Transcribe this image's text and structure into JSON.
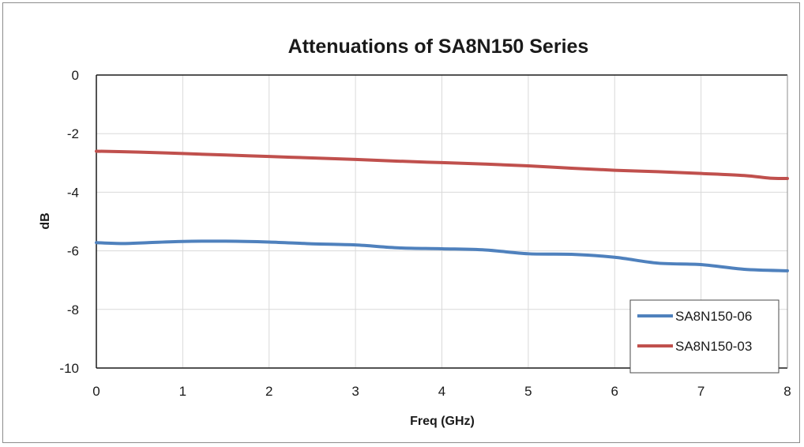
{
  "chart_data": {
    "type": "line",
    "title": "Attenuations of SA8N150 Series",
    "xlabel": "Freq (GHz)",
    "ylabel": "dB",
    "xlim": [
      0,
      8
    ],
    "ylim": [
      -10,
      0
    ],
    "x_ticks": [
      "0",
      "1",
      "2",
      "3",
      "4",
      "5",
      "6",
      "7",
      "8"
    ],
    "y_ticks": [
      "0",
      "-2",
      "-4",
      "-6",
      "-8",
      "-10"
    ],
    "grid": true,
    "legend_position": "bottom-right",
    "series": [
      {
        "name": "SA8N150-06",
        "color": "#4f81bd",
        "x": [
          0,
          0.3,
          0.6,
          1.0,
          1.5,
          2.0,
          2.5,
          3.0,
          3.5,
          4.0,
          4.5,
          5.0,
          5.5,
          6.0,
          6.5,
          7.0,
          7.5,
          8.0
        ],
        "y": [
          -5.72,
          -5.75,
          -5.72,
          -5.68,
          -5.67,
          -5.7,
          -5.76,
          -5.8,
          -5.9,
          -5.93,
          -5.97,
          -6.1,
          -6.12,
          -6.22,
          -6.42,
          -6.47,
          -6.63,
          -6.68
        ]
      },
      {
        "name": "SA8N150-03",
        "color": "#c0504d",
        "x": [
          0,
          0.5,
          1.0,
          1.5,
          2.0,
          2.5,
          3.0,
          3.5,
          4.0,
          4.5,
          5.0,
          5.5,
          6.0,
          6.5,
          7.0,
          7.5,
          7.8,
          8.0
        ],
        "y": [
          -2.6,
          -2.63,
          -2.68,
          -2.73,
          -2.78,
          -2.83,
          -2.88,
          -2.94,
          -2.99,
          -3.04,
          -3.1,
          -3.18,
          -3.25,
          -3.3,
          -3.36,
          -3.43,
          -3.52,
          -3.53
        ]
      }
    ]
  }
}
